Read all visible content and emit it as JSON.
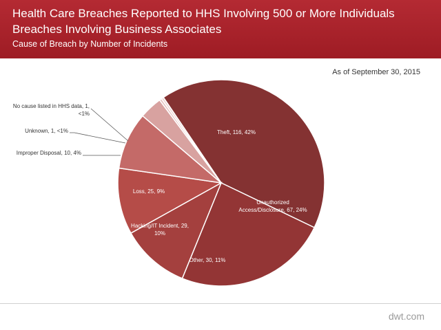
{
  "header": {
    "title_line1": "Health Care Breaches Reported to HHS Involving 500 or More Individuals",
    "title_line2": "Breaches Involving Business Associates",
    "subtitle": "Cause of Breach by Number  of Incidents"
  },
  "as_of": "As of September 30, 2015",
  "brand": "dwt.com",
  "chart_data": {
    "type": "pie",
    "title": "",
    "slices": [
      {
        "name": "Theft",
        "value": 116,
        "pct_label": "42%",
        "label_lines": [
          "Theft,  116, 42%"
        ],
        "color": "#843232"
      },
      {
        "name": "Unauthorized Access/Disclosure",
        "value": 67,
        "pct_label": "24%",
        "label_lines": [
          "Unauthorized",
          "Access/Disclosure, 67, 24%"
        ],
        "color": "#933535"
      },
      {
        "name": "Other",
        "value": 30,
        "pct_label": "11%",
        "label_lines": [
          "Other,  30, 11%"
        ],
        "color": "#a4403e"
      },
      {
        "name": "Hacking/IT Incident",
        "value": 29,
        "pct_label": "10%",
        "label_lines": [
          "Hacking/IT Incident, 29,",
          "10%"
        ],
        "color": "#b54c48"
      },
      {
        "name": "Loss",
        "value": 25,
        "pct_label": "9%",
        "label_lines": [
          "Loss, 25, 9%"
        ],
        "color": "#c46a68"
      },
      {
        "name": "Improper Disposal",
        "value": 10,
        "pct_label": "4%",
        "label_lines": [
          "Improper Disposal, 10, 4%"
        ],
        "color": "#d8a2a0"
      },
      {
        "name": "Unknown",
        "value": 1,
        "pct_label": "<1%",
        "label_lines": [
          "Unknown,  1, <1%"
        ],
        "color": "#e6c3c1"
      },
      {
        "name": "No cause listed in HHS data",
        "value": 1,
        "pct_label": "<1%",
        "label_lines": [
          "No cause listed in HHS data, 1,",
          "<1%"
        ],
        "color": "#eed6d4"
      }
    ]
  }
}
